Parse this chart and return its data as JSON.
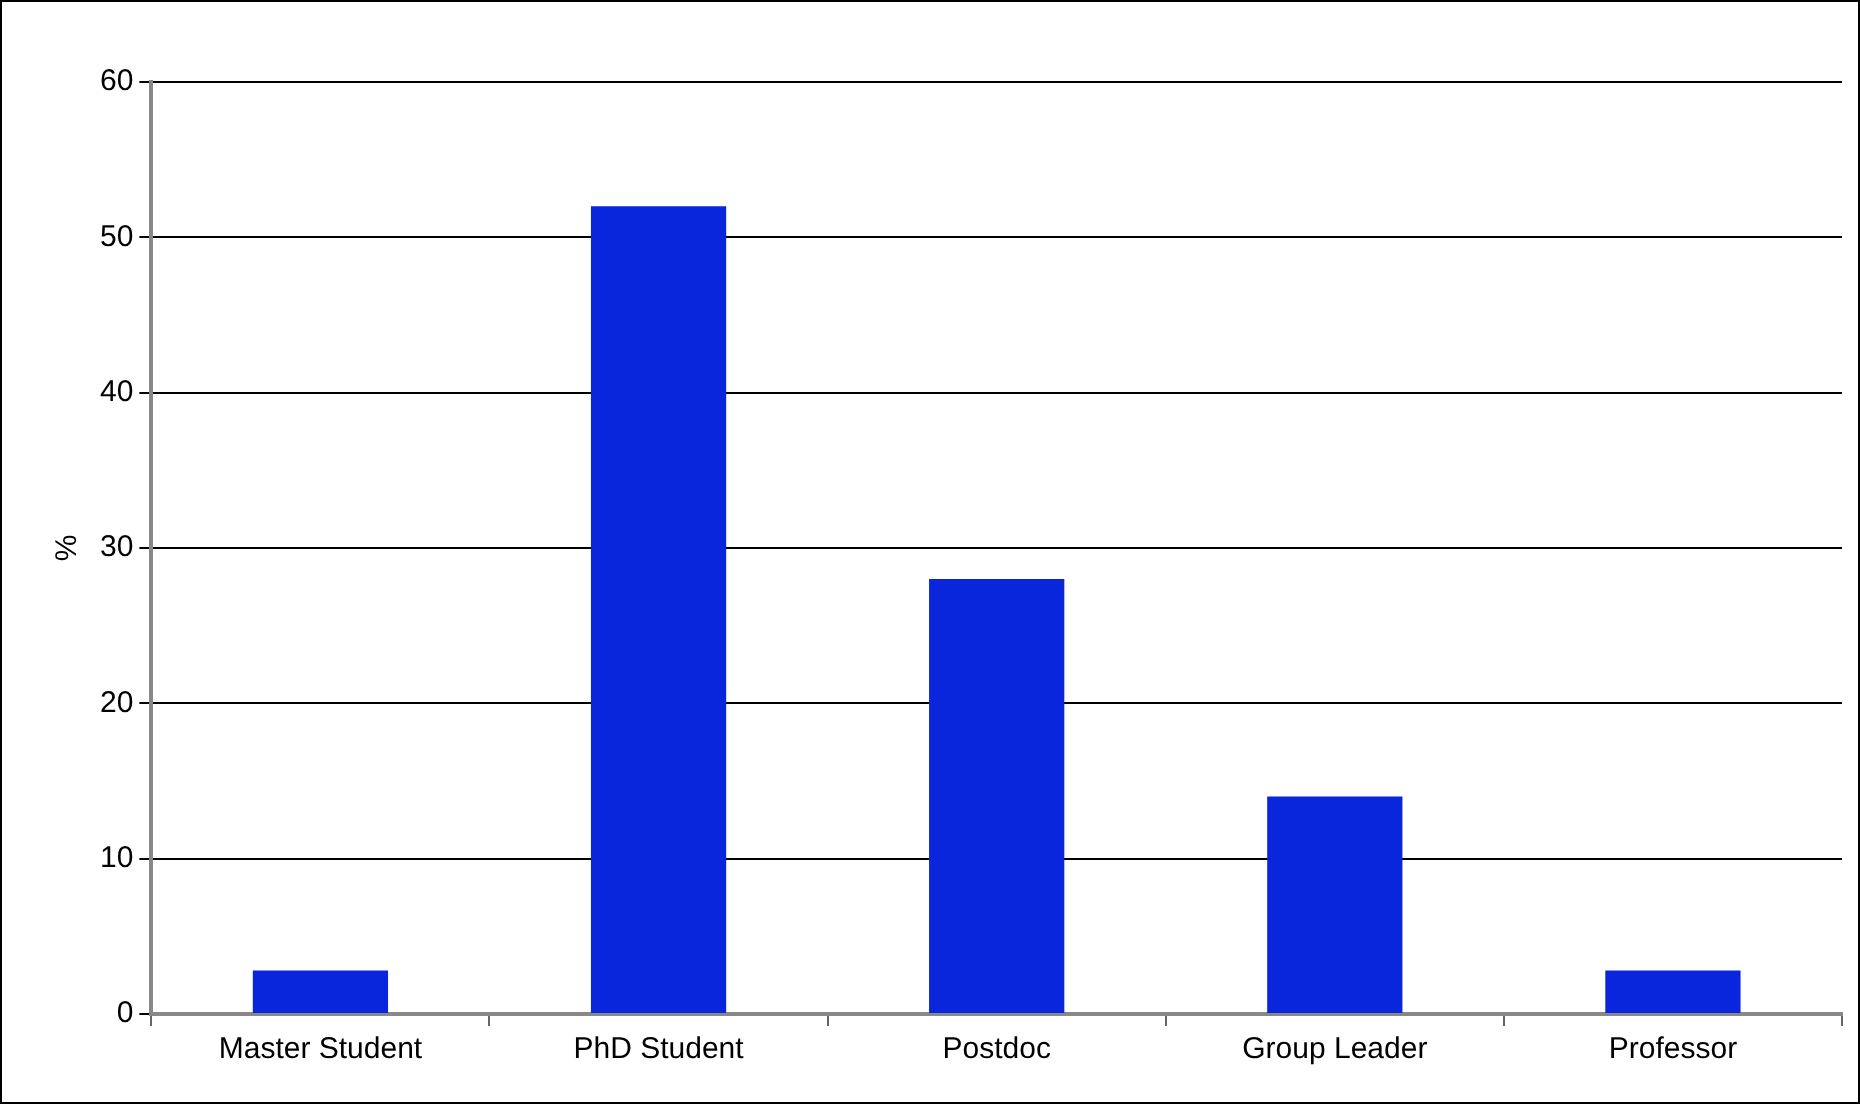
{
  "chart_data": {
    "type": "bar",
    "ylabel": "%",
    "categories": [
      "Master Student",
      "PhD Student",
      "Postdoc",
      "Group Leader",
      "Professor"
    ],
    "values": [
      2.8,
      52,
      28,
      14,
      2.8
    ],
    "color": "#0a26dc",
    "ylim": [
      0,
      60
    ],
    "yticks": [
      0,
      10,
      20,
      30,
      40,
      50,
      60
    ],
    "grid": "y",
    "legend": false
  }
}
